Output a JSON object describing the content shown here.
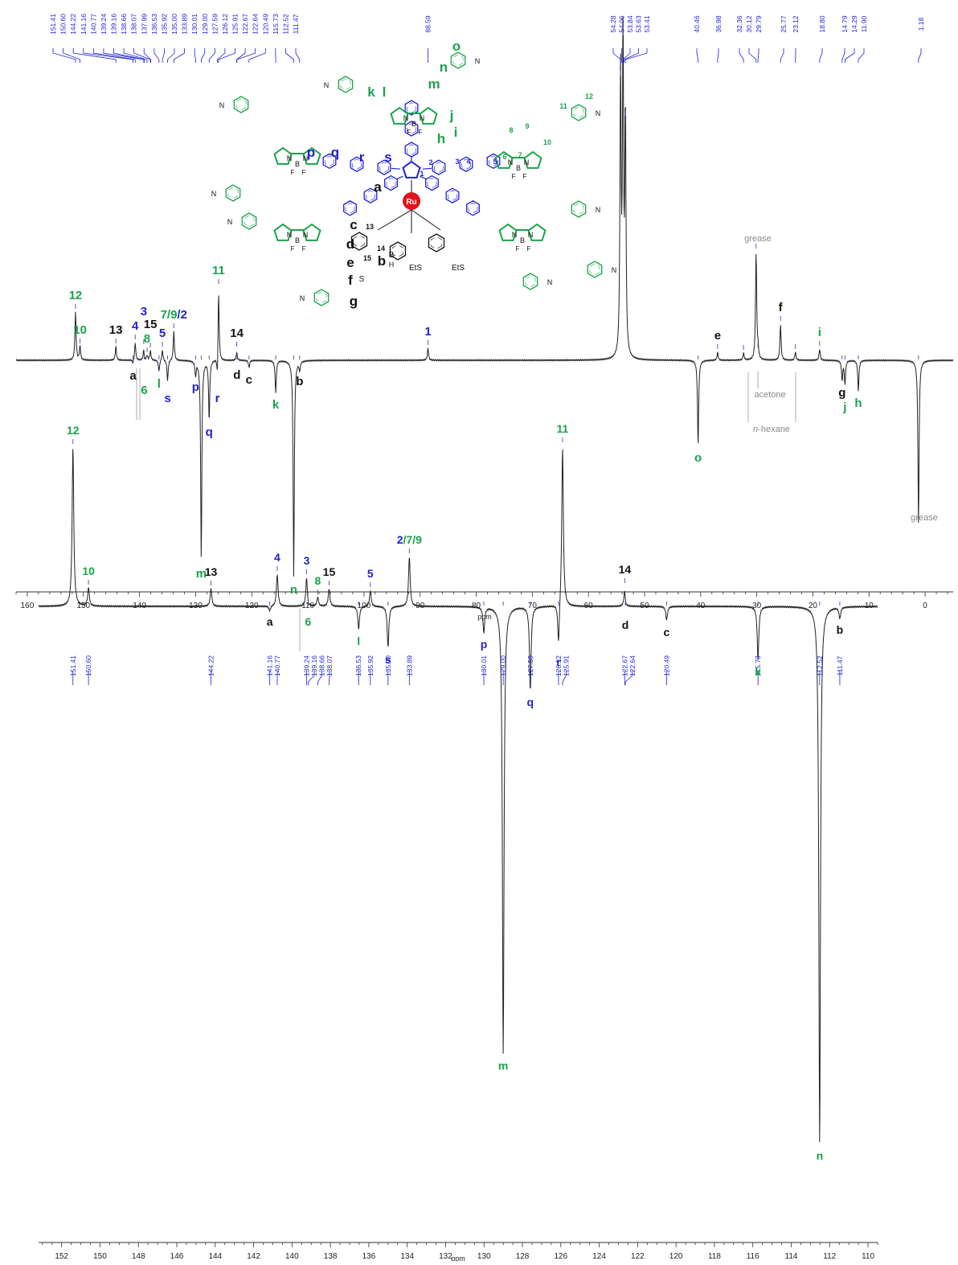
{
  "colors": {
    "black": "#111111",
    "blue": "#1f1fd6",
    "green": "#1aa34a",
    "gray": "#8a8a8a",
    "marker": "#5a5ab4",
    "trace": "#222222",
    "ru": "#e0141a"
  },
  "chart_data": [
    {
      "type": "line",
      "xlabel": "ppm",
      "xlim": [
        162,
        -5
      ],
      "x_ticks": [
        160,
        150,
        140,
        130,
        120,
        110,
        100,
        90,
        80,
        70,
        60,
        50,
        40,
        30,
        20,
        10,
        0
      ],
      "peak_list": [
        "151.41",
        "150.60",
        "144.22",
        "141.16",
        "140.77",
        "139.24",
        "139.16",
        "138.66",
        "138.07",
        "137.99",
        "136.53",
        "135.92",
        "135.00",
        "133.89",
        "130.01",
        "129.00",
        "127.59",
        "126.12",
        "125.91",
        "122.67",
        "122.64",
        "120.49",
        "115.73",
        "112.52",
        "111.47",
        "88.59",
        "54.28",
        "54.06",
        "53.84",
        "53.63",
        "53.41",
        "40.46",
        "36.98",
        "32.36",
        "30.12",
        "29.79",
        "25.77",
        "23.12",
        "18.80",
        "14.79",
        "14.29",
        "11.90",
        "1.18"
      ],
      "peaks": [
        {
          "ppm": 151.41,
          "h": 60,
          "label": "12",
          "color": "green"
        },
        {
          "ppm": 150.6,
          "h": 17,
          "label": "10",
          "color": "green"
        },
        {
          "ppm": 144.22,
          "h": 17,
          "label": "13",
          "color": "black"
        },
        {
          "ppm": 141.16,
          "h": -5,
          "label": "a",
          "color": "black"
        },
        {
          "ppm": 140.77,
          "h": 22,
          "label": "4",
          "color": "blue"
        },
        {
          "ppm": 139.24,
          "h": 16,
          "label": "3",
          "color": "blue"
        },
        {
          "ppm": 139.16,
          "h": -5,
          "label": "6",
          "color": "green"
        },
        {
          "ppm": 138.66,
          "h": 6,
          "label": "8",
          "color": "green"
        },
        {
          "ppm": 138.07,
          "h": 12,
          "label": "15",
          "color": "black"
        },
        {
          "ppm": 136.53,
          "h": -14,
          "label": "l",
          "color": "green"
        },
        {
          "ppm": 135.92,
          "h": 13,
          "label": "5",
          "color": "blue"
        },
        {
          "ppm": 135.0,
          "h": -26,
          "label": "s",
          "color": "blue"
        },
        {
          "ppm": 133.89,
          "h": 36,
          "label": "7/9/2",
          "color": "blue"
        },
        {
          "ppm": 130.01,
          "h": -18,
          "label": "p",
          "color": "blue"
        },
        {
          "ppm": 129.0,
          "h": -250,
          "label": "m",
          "color": "green"
        },
        {
          "ppm": 127.59,
          "h": -74,
          "label": "q",
          "color": "blue"
        },
        {
          "ppm": 126.12,
          "h": -32,
          "label": "r",
          "color": "blue"
        },
        {
          "ppm": 125.91,
          "h": 91,
          "label": "11",
          "color": "green"
        },
        {
          "ppm": 122.67,
          "h": 13,
          "label": "14",
          "color": "black"
        },
        {
          "ppm": 122.64,
          "h": -3,
          "label": "d",
          "color": "black"
        },
        {
          "ppm": 120.49,
          "h": -9,
          "label": "c",
          "color": "black"
        },
        {
          "ppm": 115.73,
          "h": -40,
          "label": "k",
          "color": "green"
        },
        {
          "ppm": 112.52,
          "h": -270,
          "label": "n",
          "color": "green"
        },
        {
          "ppm": 111.47,
          "h": -11,
          "label": "b",
          "color": "black"
        },
        {
          "ppm": 88.59,
          "h": 15,
          "label": "1",
          "color": "blue"
        },
        {
          "ppm": 54.28,
          "h": 350,
          "label": "",
          "color": "black"
        },
        {
          "ppm": 53.84,
          "h": 400,
          "label": "",
          "color": "black"
        },
        {
          "ppm": 53.41,
          "h": 300,
          "label": "",
          "color": "black"
        },
        {
          "ppm": 40.46,
          "h": -106,
          "label": "o",
          "color": "green"
        },
        {
          "ppm": 36.98,
          "h": 10,
          "label": "e",
          "color": "black"
        },
        {
          "ppm": 32.36,
          "h": 9,
          "label": "",
          "color": "black"
        },
        {
          "ppm": 30.12,
          "h": 135,
          "label": "",
          "color": "black"
        },
        {
          "ppm": 29.79,
          "h": 12,
          "label": "",
          "color": "black"
        },
        {
          "ppm": 25.77,
          "h": 45,
          "label": "f",
          "color": "black"
        },
        {
          "ppm": 23.12,
          "h": 10,
          "label": "",
          "color": "black"
        },
        {
          "ppm": 18.8,
          "h": 14,
          "label": "i",
          "color": "green"
        },
        {
          "ppm": 14.79,
          "h": -25,
          "label": "g",
          "color": "black"
        },
        {
          "ppm": 14.29,
          "h": -30,
          "label": "j",
          "color": "green"
        },
        {
          "ppm": 11.9,
          "h": -38,
          "label": "h",
          "color": "green"
        },
        {
          "ppm": 1.18,
          "h": -205,
          "label": "",
          "color": "black"
        }
      ],
      "annotations": [
        {
          "text": "grease",
          "ppm": 30.12,
          "color": "gray"
        },
        {
          "text": "acetone",
          "ppm": 29.79,
          "color": "gray"
        },
        {
          "text": "n-hexane",
          "ppm": 27.5,
          "color": "gray"
        },
        {
          "text": "grease",
          "ppm": 1.18,
          "color": "gray"
        }
      ]
    },
    {
      "type": "line",
      "xlabel": "ppm",
      "xlim": [
        153.2,
        109.5
      ],
      "x_ticks": [
        152,
        150,
        148,
        146,
        144,
        142,
        140,
        138,
        136,
        134,
        132,
        130,
        128,
        126,
        124,
        122,
        120,
        118,
        116,
        114,
        112,
        110
      ],
      "peak_list": [
        "151.41",
        "150.60",
        "144.22",
        "141.16",
        "140.77",
        "139.24",
        "139.16",
        "138.66",
        "138.07",
        "136.53",
        "135.92",
        "135.00",
        "133.89",
        "130.01",
        "129.00",
        "127.59",
        "126.12",
        "125.91",
        "122.67",
        "122.64",
        "120.49",
        "115.73",
        "112.52",
        "111.47"
      ],
      "peaks": [
        {
          "ppm": 151.41,
          "h": 198,
          "label": "12",
          "color": "green"
        },
        {
          "ppm": 150.6,
          "h": 23,
          "label": "10",
          "color": "green"
        },
        {
          "ppm": 144.22,
          "h": 22,
          "label": "13",
          "color": "black"
        },
        {
          "ppm": 141.16,
          "h": -6,
          "label": "a",
          "color": "black"
        },
        {
          "ppm": 140.77,
          "h": 40,
          "label": "4",
          "color": "blue"
        },
        {
          "ppm": 139.24,
          "h": 36,
          "label": "3",
          "color": "blue"
        },
        {
          "ppm": 139.16,
          "h": -4,
          "label": "6",
          "color": "green"
        },
        {
          "ppm": 138.66,
          "h": 11,
          "label": "8",
          "color": "green"
        },
        {
          "ppm": 138.07,
          "h": 22,
          "label": "15",
          "color": "black"
        },
        {
          "ppm": 136.53,
          "h": -28,
          "label": "l",
          "color": "green"
        },
        {
          "ppm": 135.92,
          "h": 20,
          "label": "5",
          "color": "blue"
        },
        {
          "ppm": 135.0,
          "h": -51,
          "label": "s",
          "color": "blue"
        },
        {
          "ppm": 133.89,
          "h": 62,
          "label": "2/7/9",
          "color": "blue"
        },
        {
          "ppm": 130.01,
          "h": -32,
          "label": "p",
          "color": "blue"
        },
        {
          "ppm": 129.0,
          "h": -556,
          "label": "m",
          "color": "green"
        },
        {
          "ppm": 127.59,
          "h": -104,
          "label": "q",
          "color": "blue"
        },
        {
          "ppm": 126.12,
          "h": -54,
          "label": "r",
          "color": "blue"
        },
        {
          "ppm": 125.91,
          "h": 200,
          "label": "11",
          "color": "green"
        },
        {
          "ppm": 122.67,
          "h": 25,
          "label": "14",
          "color": "black"
        },
        {
          "ppm": 122.64,
          "h": -8,
          "label": "d",
          "color": "black"
        },
        {
          "ppm": 120.49,
          "h": -17,
          "label": "c",
          "color": "black"
        },
        {
          "ppm": 115.73,
          "h": -66,
          "label": "k",
          "color": "green"
        },
        {
          "ppm": 112.52,
          "h": -668,
          "label": "n",
          "color": "green"
        },
        {
          "ppm": 111.47,
          "h": -14,
          "label": "b",
          "color": "black"
        }
      ]
    }
  ],
  "structure": {
    "metal": "Ru",
    "green_labels": [
      "o",
      "n",
      "m",
      "k",
      "l",
      "j",
      "i",
      "h",
      "12",
      "11",
      "10",
      "9",
      "8",
      "7",
      "6"
    ],
    "blue_labels": [
      "p",
      "q",
      "r",
      "s",
      "1",
      "2",
      "3",
      "4",
      "5"
    ],
    "black_labels": [
      "a",
      "c",
      "d",
      "e",
      "f",
      "g",
      "b",
      "13",
      "14",
      "15"
    ],
    "atoms": [
      "N",
      "F",
      "F",
      "B",
      "N",
      "EtS",
      "EtS",
      "H",
      "N",
      "N",
      "N",
      "N",
      "N"
    ]
  }
}
